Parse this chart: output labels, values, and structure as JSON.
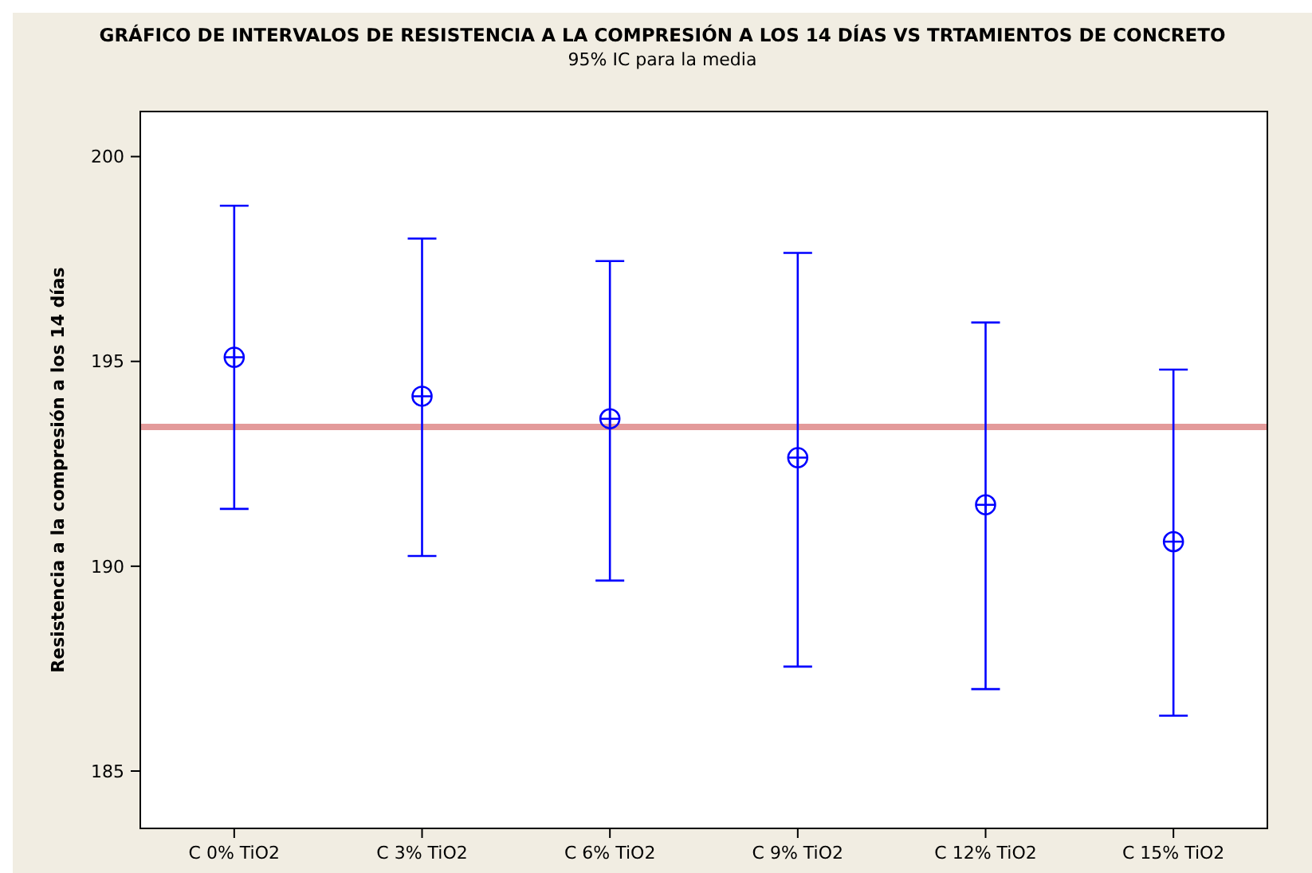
{
  "chart_data": {
    "type": "scatter",
    "title": "GRÁFICO DE INTERVALOS DE RESISTENCIA A LA COMPRESIÓN A LOS 14 DÍAS VS TRTAMIENTOS DE CONCRETO",
    "subtitle": "95% IC para la media",
    "ylabel": "Resistencia a la compresión a los 14 días",
    "categories": [
      "C 0% TiO2",
      "C 3% TiO2",
      "C 6% TiO2",
      "C 9% TiO2",
      "C 12% TiO2",
      "C 15% TiO2"
    ],
    "series": [
      {
        "color": "#0000ff",
        "values": [
          195.1,
          194.15,
          193.6,
          192.65,
          191.5,
          190.6
        ],
        "errors": [
          [
            191.4,
            198.8
          ],
          [
            190.25,
            198.0
          ],
          [
            189.65,
            197.45
          ],
          [
            187.55,
            197.65
          ],
          [
            187.0,
            195.95
          ],
          [
            186.35,
            194.8
          ]
        ]
      }
    ],
    "ylim": [
      183.6,
      201.1
    ],
    "yticks": [
      185,
      190,
      195,
      200
    ],
    "marker": "circle",
    "grid": false,
    "ref_lines": [
      {
        "axis": "y",
        "value": 193.4,
        "color": "#e39a9a"
      }
    ]
  }
}
